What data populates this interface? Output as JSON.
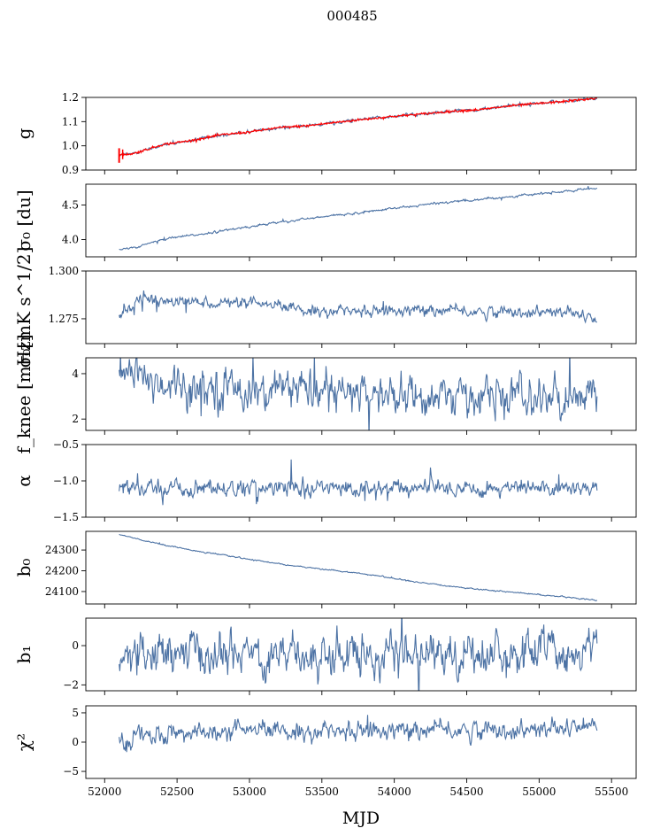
{
  "figure": {
    "title": "000485",
    "xlabel": "MJD"
  },
  "colors": {
    "series": "#4c72a4",
    "overlay": "#ff0000",
    "axis": "#000000"
  },
  "chart_data": [
    {
      "type": "line",
      "ylabel": "g",
      "x_range": [
        52100,
        55400
      ],
      "xlim": [
        51870,
        55670
      ],
      "ylim": [
        0.9,
        1.2
      ],
      "yticks": [
        0.9,
        1.0,
        1.1,
        1.2
      ],
      "ytick_labels": [
        "0.9",
        "1.0",
        "1.1",
        "1.2"
      ],
      "trend": [
        [
          52100,
          0.962
        ],
        [
          52200,
          0.968
        ],
        [
          52400,
          1.005
        ],
        [
          52600,
          1.022
        ],
        [
          52800,
          1.045
        ],
        [
          53000,
          1.057
        ],
        [
          53200,
          1.075
        ],
        [
          53400,
          1.083
        ],
        [
          53600,
          1.097
        ],
        [
          53800,
          1.11
        ],
        [
          54000,
          1.122
        ],
        [
          54200,
          1.132
        ],
        [
          54400,
          1.143
        ],
        [
          54600,
          1.15
        ],
        [
          54800,
          1.165
        ],
        [
          55000,
          1.175
        ],
        [
          55200,
          1.185
        ],
        [
          55400,
          1.197
        ]
      ],
      "noise": 0.003,
      "overlay": true
    },
    {
      "type": "line",
      "ylabel": "σ₀ [du]",
      "x_range": [
        52100,
        55400
      ],
      "xlim": [
        51870,
        55670
      ],
      "ylim": [
        3.75,
        4.8
      ],
      "yticks": [
        4.0,
        4.5
      ],
      "ytick_labels": [
        "4.0",
        "4.5"
      ],
      "trend": [
        [
          52100,
          3.85
        ],
        [
          52200,
          3.88
        ],
        [
          52400,
          4.0
        ],
        [
          52800,
          4.12
        ],
        [
          53200,
          4.25
        ],
        [
          53600,
          4.35
        ],
        [
          54000,
          4.45
        ],
        [
          54400,
          4.55
        ],
        [
          54800,
          4.62
        ],
        [
          55200,
          4.7
        ],
        [
          55400,
          4.74
        ]
      ],
      "noise": 0.008
    },
    {
      "type": "line",
      "ylabel": "σ₀[mK s^1/2]",
      "x_range": [
        52100,
        55400
      ],
      "xlim": [
        51870,
        55670
      ],
      "ylim": [
        1.262,
        1.3
      ],
      "yticks": [
        1.275,
        1.3
      ],
      "ytick_labels": [
        "1.275",
        "1.300"
      ],
      "trend": [
        [
          52100,
          1.2775
        ],
        [
          52250,
          1.2855
        ],
        [
          52400,
          1.284
        ],
        [
          52800,
          1.2835
        ],
        [
          53100,
          1.282
        ],
        [
          53400,
          1.2795
        ],
        [
          53800,
          1.279
        ],
        [
          54200,
          1.2795
        ],
        [
          54600,
          1.2785
        ],
        [
          55000,
          1.2785
        ],
        [
          55250,
          1.278
        ],
        [
          55400,
          1.274
        ]
      ],
      "noise": 0.0015
    },
    {
      "type": "line",
      "ylabel": "f_knee [mHz]",
      "x_range": [
        52100,
        55400
      ],
      "xlim": [
        51870,
        55670
      ],
      "ylim": [
        1.5,
        4.7
      ],
      "yticks": [
        2,
        4
      ],
      "ytick_labels": [
        "2",
        "4"
      ],
      "trend": [
        [
          52100,
          4.0
        ],
        [
          52300,
          3.7
        ],
        [
          52800,
          3.4
        ],
        [
          53400,
          3.2
        ],
        [
          54000,
          3.0
        ],
        [
          54600,
          3.0
        ],
        [
          55000,
          2.9
        ],
        [
          55400,
          2.9
        ]
      ],
      "noise": 0.45
    },
    {
      "type": "line",
      "ylabel": "α",
      "x_range": [
        52100,
        55400
      ],
      "xlim": [
        51870,
        55670
      ],
      "ylim": [
        -1.5,
        -0.5
      ],
      "yticks": [
        -1.5,
        -1.0,
        -0.5
      ],
      "ytick_labels": [
        "−1.5",
        "−1.0",
        "−0.5"
      ],
      "trend": [
        [
          52100,
          -1.1
        ],
        [
          55400,
          -1.1
        ]
      ],
      "noise": 0.06
    },
    {
      "type": "line",
      "ylabel": "b₀",
      "x_range": [
        52100,
        55400
      ],
      "xlim": [
        51870,
        55670
      ],
      "ylim": [
        24040,
        24390
      ],
      "yticks": [
        24100,
        24200,
        24300
      ],
      "ytick_labels": [
        "24100",
        "24200",
        "24300"
      ],
      "trend": [
        [
          52100,
          24375
        ],
        [
          52300,
          24340
        ],
        [
          52600,
          24300
        ],
        [
          53000,
          24255
        ],
        [
          53400,
          24215
        ],
        [
          53800,
          24185
        ],
        [
          54200,
          24140
        ],
        [
          54600,
          24110
        ],
        [
          55000,
          24085
        ],
        [
          55400,
          24058
        ]
      ],
      "noise": 1.5
    },
    {
      "type": "line",
      "ylabel": "b₁",
      "x_range": [
        52100,
        55400
      ],
      "xlim": [
        51870,
        55670
      ],
      "ylim": [
        -2.3,
        1.4
      ],
      "yticks": [
        -2,
        0
      ],
      "ytick_labels": [
        "−2",
        "0"
      ],
      "trend": [
        [
          52100,
          -0.5
        ],
        [
          55400,
          -0.3
        ]
      ],
      "noise": 0.55
    },
    {
      "type": "line",
      "ylabel": "χ²",
      "x_range": [
        52100,
        55400
      ],
      "xlim": [
        51870,
        55670
      ],
      "ylim": [
        -6.2,
        6.2
      ],
      "yticks": [
        -5,
        0,
        5
      ],
      "ytick_labels": [
        "−5",
        "0",
        "5"
      ],
      "trend": [
        [
          52100,
          0.2
        ],
        [
          52400,
          1.3
        ],
        [
          53000,
          1.8
        ],
        [
          54000,
          2.0
        ],
        [
          55000,
          2.0
        ],
        [
          55400,
          2.8
        ]
      ],
      "noise": 0.8
    }
  ],
  "xaxis": {
    "ticks": [
      52000,
      52500,
      53000,
      53500,
      54000,
      54500,
      55000,
      55500
    ],
    "tick_labels": [
      "52000",
      "52500",
      "53000",
      "53500",
      "54000",
      "54500",
      "55000",
      "55500"
    ]
  }
}
